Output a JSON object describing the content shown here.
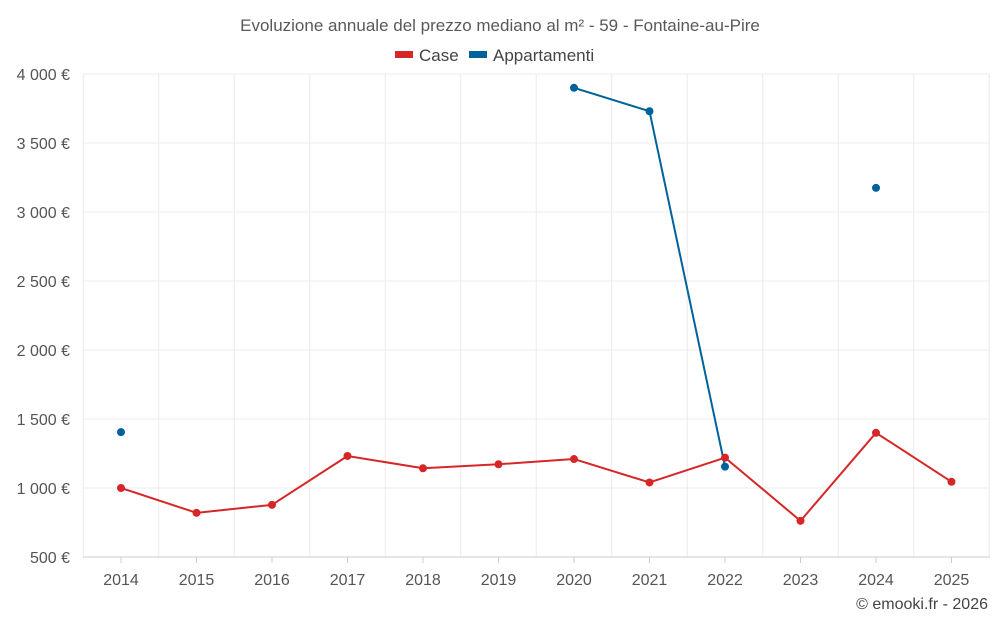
{
  "chart_data": {
    "type": "line",
    "title": "Evoluzione annuale del prezzo mediano al m² - 59 - Fontaine-au-Pire",
    "categories": [
      "2014",
      "2015",
      "2016",
      "2017",
      "2018",
      "2019",
      "2020",
      "2021",
      "2022",
      "2023",
      "2024",
      "2025"
    ],
    "ylim": [
      500,
      4000
    ],
    "yticks": [
      500,
      1000,
      1500,
      2000,
      2500,
      3000,
      3500,
      4000
    ],
    "ytick_labels": [
      "500 €",
      "1 000 €",
      "1 500 €",
      "2 000 €",
      "2 500 €",
      "3 000 €",
      "3 500 €",
      "4 000 €"
    ],
    "grid": true,
    "legend_position": "top-center",
    "series": [
      {
        "name": "Case",
        "color": "#d62728",
        "values": [
          1000,
          820,
          878,
          1232,
          1143,
          1172,
          1210,
          1040,
          1220,
          762,
          1400,
          1045
        ]
      },
      {
        "name": "Appartamenti",
        "color": "#00629b",
        "values": [
          1405,
          null,
          null,
          null,
          null,
          null,
          3900,
          3730,
          1155,
          null,
          3175,
          null
        ]
      }
    ]
  },
  "credit": "© emooki.fr - 2026"
}
